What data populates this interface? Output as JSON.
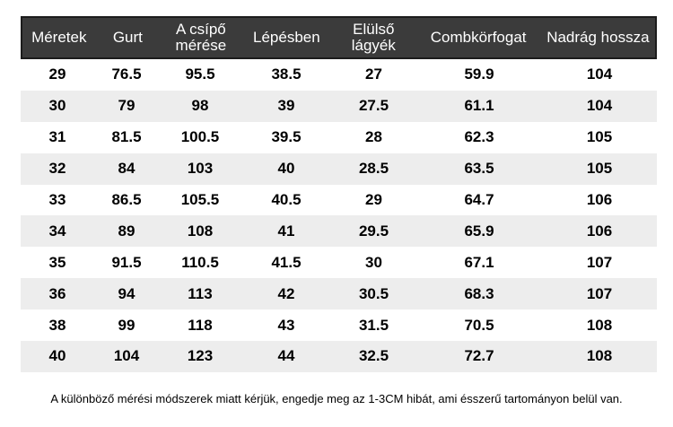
{
  "chart_data": {
    "type": "table",
    "columns": [
      "Méretek",
      "Gurt",
      "A csípő mérése",
      "Lépésben",
      "Elülső lágyék",
      "Combkörfogat",
      "Nadrág hossza"
    ],
    "rows": [
      [
        "29",
        "76.5",
        "95.5",
        "38.5",
        "27",
        "59.9",
        "104"
      ],
      [
        "30",
        "79",
        "98",
        "39",
        "27.5",
        "61.1",
        "104"
      ],
      [
        "31",
        "81.5",
        "100.5",
        "39.5",
        "28",
        "62.3",
        "105"
      ],
      [
        "32",
        "84",
        "103",
        "40",
        "28.5",
        "63.5",
        "105"
      ],
      [
        "33",
        "86.5",
        "105.5",
        "40.5",
        "29",
        "64.7",
        "106"
      ],
      [
        "34",
        "89",
        "108",
        "41",
        "29.5",
        "65.9",
        "106"
      ],
      [
        "35",
        "91.5",
        "110.5",
        "41.5",
        "30",
        "67.1",
        "107"
      ],
      [
        "36",
        "94",
        "113",
        "42",
        "30.5",
        "68.3",
        "107"
      ],
      [
        "38",
        "99",
        "118",
        "43",
        "31.5",
        "70.5",
        "108"
      ],
      [
        "40",
        "104",
        "123",
        "44",
        "32.5",
        "72.7",
        "108"
      ]
    ],
    "layout": {
      "zebra_striping": true,
      "first_data_row_background": "white"
    }
  },
  "footer": {
    "note": "A különböző mérési módszerek miatt kérjük, engedje meg az 1-3CM hibát, ami ésszerű tartományon belül van."
  },
  "colors": {
    "page_bg": "#ffffff",
    "header_bg": "#3b3b3b",
    "header_border": "#1c1c1c",
    "header_text": "#ffffff",
    "row_stripe": "#ededed",
    "row_text": "#000000"
  }
}
